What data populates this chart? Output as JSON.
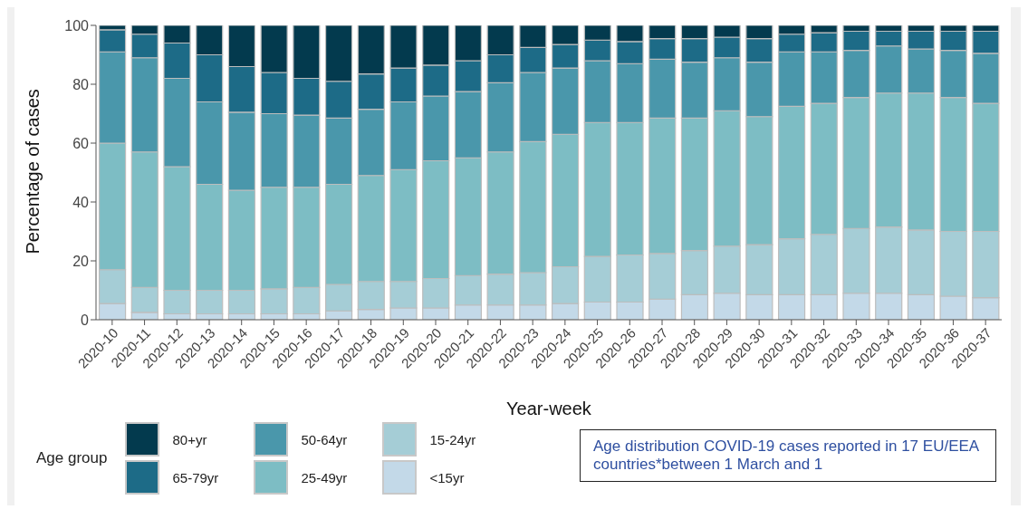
{
  "chart_data": {
    "type": "bar",
    "stacked": true,
    "xlabel": "Year-week",
    "ylabel": "Percentage of cases",
    "legend_title": "Age group",
    "legend": "bottom",
    "grid": false,
    "ylim": [
      0,
      100
    ],
    "yticks": [
      0,
      20,
      40,
      60,
      80,
      100
    ],
    "categories": [
      "2020-10",
      "2020-11",
      "2020-12",
      "2020-13",
      "2020-14",
      "2020-15",
      "2020-16",
      "2020-17",
      "2020-18",
      "2020-19",
      "2020-20",
      "2020-21",
      "2020-22",
      "2020-23",
      "2020-24",
      "2020-25",
      "2020-26",
      "2020-27",
      "2020-28",
      "2020-29",
      "2020-30",
      "2020-31",
      "2020-32",
      "2020-33",
      "2020-34",
      "2020-35",
      "2020-36",
      "2020-37"
    ],
    "series": [
      {
        "name": "<15yr",
        "color": "#c3d9e8",
        "values": [
          5.5,
          2.5,
          2,
          2,
          2,
          2,
          2,
          3,
          3.5,
          4,
          4,
          5,
          5,
          5,
          5.5,
          6,
          6,
          7,
          8.5,
          9,
          8.5,
          8.5,
          8.5,
          9,
          9,
          8.5,
          8,
          7.5
        ]
      },
      {
        "name": "15-24yr",
        "color": "#a5cdd6",
        "values": [
          11.5,
          8.5,
          8,
          8,
          8,
          8.5,
          9,
          9,
          9.5,
          9,
          10,
          10,
          10.5,
          11,
          12.5,
          15.5,
          16,
          15.5,
          15,
          16,
          17,
          19,
          20.5,
          22,
          22.5,
          22,
          22,
          22.5
        ]
      },
      {
        "name": "25-49yr",
        "color": "#7dbdc4",
        "values": [
          43,
          46,
          42,
          36,
          34,
          34.5,
          34,
          34,
          36,
          38,
          40,
          40,
          41.5,
          44.5,
          45,
          45.5,
          45,
          46,
          45,
          46,
          43.5,
          45,
          44.5,
          44.5,
          45.5,
          46.5,
          45.5,
          43.5
        ]
      },
      {
        "name": "50-64yr",
        "color": "#4a97ab",
        "values": [
          31,
          32,
          30,
          28,
          26.5,
          25,
          24.5,
          22.5,
          22.5,
          23,
          22,
          22.5,
          23.5,
          23.5,
          22.5,
          21,
          20,
          20,
          19,
          18,
          18.5,
          18.5,
          17.5,
          16,
          16,
          15,
          16,
          17
        ]
      },
      {
        "name": "65-79yr",
        "color": "#1d6b87",
        "values": [
          7.5,
          8,
          12,
          16,
          15.5,
          14,
          12.5,
          12.5,
          12,
          11.5,
          10.5,
          10.5,
          9.5,
          8.5,
          8,
          7,
          7.5,
          7,
          8,
          7,
          8,
          6,
          6.5,
          6.5,
          5,
          6,
          6.5,
          7.5
        ]
      },
      {
        "name": "80+yr",
        "color": "#033a4e",
        "values": [
          1.5,
          3,
          6,
          10,
          14,
          16,
          18,
          19,
          16.5,
          14.5,
          13.5,
          12,
          10,
          7.5,
          6.5,
          5,
          5.5,
          4.5,
          4.5,
          4,
          4.5,
          3,
          2.5,
          2,
          2,
          2,
          2,
          2
        ]
      }
    ],
    "annotations": [
      "Age distribution COVID-19 cases reported in 17 EU/EEA countries*between 1 March and 1"
    ]
  }
}
